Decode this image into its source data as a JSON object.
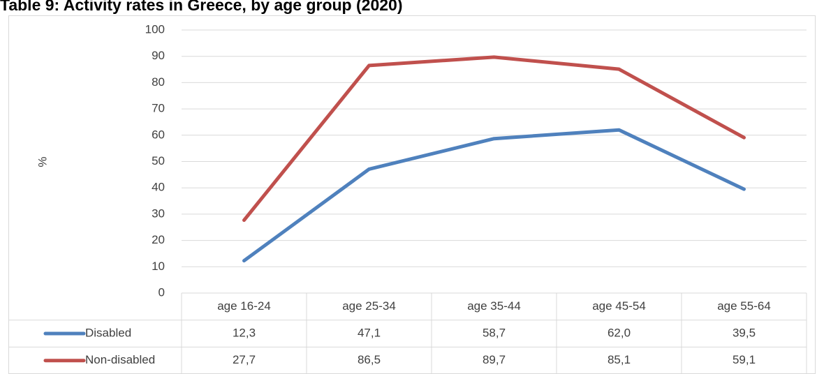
{
  "chart_data": {
    "type": "line",
    "title": "Table 9: Activity rates in Greece, by age group (2020)",
    "y_label": "%",
    "categories": [
      "age 16-24",
      "age 25-34",
      "age 35-44",
      "age 45-54",
      "age 55-64"
    ],
    "series": [
      {
        "name": "Disabled",
        "color": "#4f81bd",
        "values": [
          12.3,
          47.1,
          58.7,
          62.0,
          39.5
        ],
        "value_labels": [
          "12,3",
          "47,1",
          "58,7",
          "62,0",
          "39,5"
        ]
      },
      {
        "name": "Non-disabled",
        "color": "#c0504d",
        "values": [
          27.7,
          86.5,
          89.7,
          85.1,
          59.1
        ],
        "value_labels": [
          "27,7",
          "86,5",
          "89,7",
          "85,1",
          "59,1"
        ]
      }
    ],
    "ylim": [
      0,
      100
    ],
    "yticks": [
      0,
      10,
      20,
      30,
      40,
      50,
      60,
      70,
      80,
      90,
      100
    ],
    "grid": true
  }
}
